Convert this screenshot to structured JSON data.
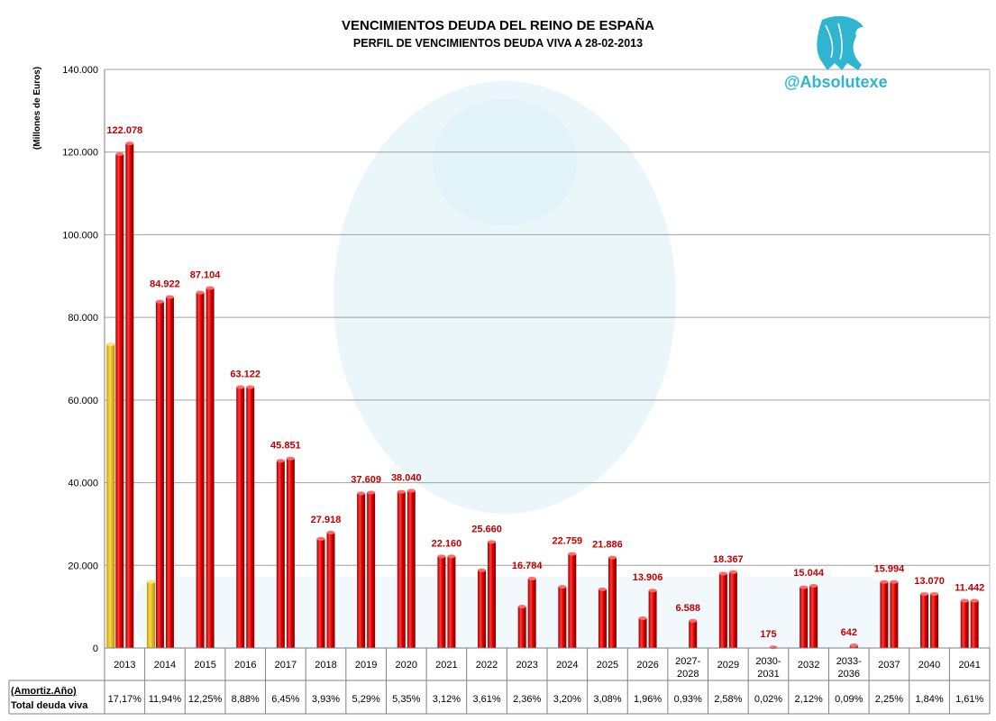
{
  "chart_data": {
    "type": "bar",
    "title": "VENCIMIENTOS DEUDA DEL REINO DE ESPAÑA",
    "subtitle": "PERFIL DE VENCIMIENTOS DEUDA VIVA A 28-02-2013",
    "ylabel": "(Millones de Euros)",
    "ylim": [
      0,
      140000
    ],
    "yticks": [
      "0",
      "20.000",
      "40.000",
      "60.000",
      "80.000",
      "100.000",
      "120.000",
      "140.000"
    ],
    "grid": true,
    "categories": [
      "2013",
      "2014",
      "2015",
      "2016",
      "2017",
      "2018",
      "2019",
      "2020",
      "2021",
      "2022",
      "2023",
      "2024",
      "2025",
      "2026",
      "2027-2028",
      "2029",
      "2030-2031",
      "2032",
      "2033-2036",
      "2037",
      "2040",
      "2041"
    ],
    "series": [
      {
        "values": [
          73500,
          16000,
          null,
          null,
          null,
          null,
          null,
          null,
          null,
          null,
          null,
          null,
          null,
          null,
          null,
          null,
          null,
          null,
          null,
          null,
          null,
          null
        ]
      },
      {
        "values": [
          119500,
          83800,
          86000,
          63122,
          45300,
          26400,
          37400,
          37800,
          22160,
          18800,
          10000,
          14800,
          14200,
          7200,
          0,
          18000,
          0,
          14700,
          0,
          15994,
          13070,
          11442
        ]
      },
      {
        "values": [
          122078,
          84922,
          87104,
          63122,
          45851,
          27918,
          37609,
          38040,
          22160,
          25660,
          16784,
          22759,
          21886,
          13906,
          6588,
          18367,
          175,
          15044,
          642,
          15994,
          13070,
          11442
        ]
      }
    ],
    "data_labels": [
      "122.078",
      "84.922",
      "87.104",
      "63.122",
      "45.851",
      "27.918",
      "37.609",
      "38.040",
      "22.160",
      "25.660",
      "16.784",
      "22.759",
      "21.886",
      "13.906",
      "6.588",
      "18.367",
      "175",
      "15.044",
      "642",
      "15.994",
      "13.070",
      "11.442"
    ],
    "table": {
      "row1_label": "(Amortiz.Año)",
      "row2_label": "Total deuda viva",
      "percentages": [
        "17,17%",
        "11,94%",
        "12,25%",
        "8,88%",
        "6,45%",
        "3,93%",
        "5,29%",
        "5,35%",
        "3,12%",
        "3,61%",
        "2,36%",
        "3,20%",
        "3,08%",
        "1,96%",
        "0,93%",
        "2,58%",
        "0,02%",
        "2,12%",
        "0,09%",
        "2,25%",
        "1,84%",
        "1,61%"
      ]
    },
    "colors": {
      "bar": "#e00000",
      "bar_dark": "#8c0000",
      "bar_light": "#ff5a5a",
      "yellow": "#f7c400",
      "yellow_dark": "#b98e00",
      "label": "#c00000",
      "grid": "#a0a0a0",
      "watermark": "#d9eef5"
    }
  },
  "watermark_text": "@Absolutexe"
}
